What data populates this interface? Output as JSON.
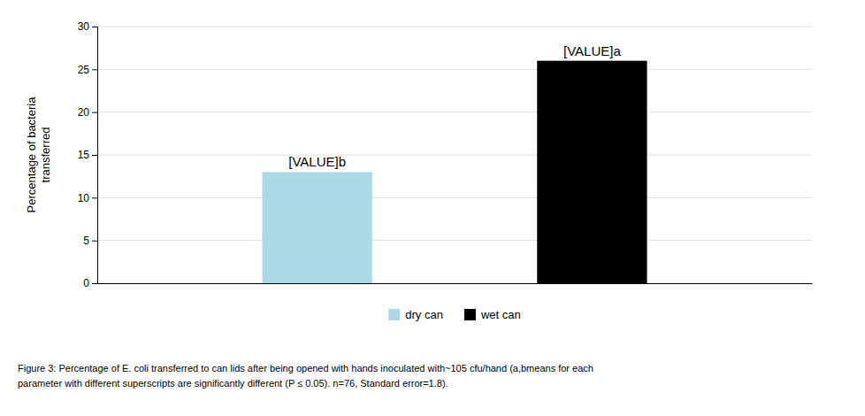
{
  "chart_data": {
    "type": "bar",
    "categories": [
      "dry can",
      "wet can"
    ],
    "values": [
      13,
      26
    ],
    "colors": [
      "#add8e6",
      "#000000"
    ],
    "data_labels": true,
    "value_labels": [
      "[VALUE]b",
      "[VALUE]a"
    ],
    "ylabel": "Percentage of bacteria\ntransferred",
    "ylim": [
      0,
      30
    ],
    "yticks": [
      0,
      5,
      10,
      15,
      20,
      25,
      30
    ],
    "grid": true,
    "legend": "bottom",
    "tick_labels": "y",
    "caption": "Figure 3: Percentage of E. coli transferred to can lids after being opened with hands inoculated with~105 cfu/hand (a,bmeans for each\nparameter with different superscripts are significantly different (P ≤ 0.05). n=76, Standard error=1.8)."
  }
}
